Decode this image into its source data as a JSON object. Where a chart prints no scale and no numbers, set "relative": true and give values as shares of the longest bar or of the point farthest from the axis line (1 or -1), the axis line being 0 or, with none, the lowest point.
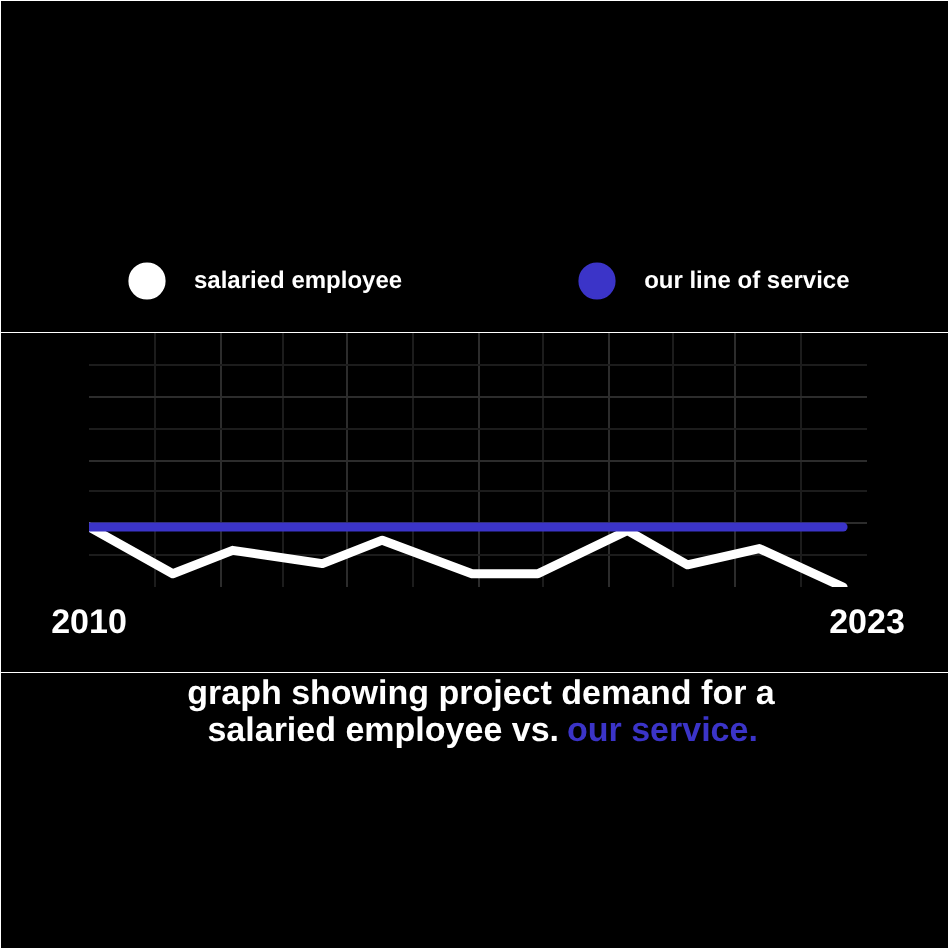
{
  "chart_data": {
    "type": "line",
    "title": "graph showing project demand for a salaried employee vs. our service.",
    "relative": true,
    "xlim": [
      2010,
      2023
    ],
    "xticks": [
      2010,
      {
        "value": 2012.2,
        "label": null
      },
      {
        "value": 2014.3,
        "label": null
      },
      {
        "value": 2016.5,
        "label": null
      },
      {
        "value": 2018.7,
        "label": null
      },
      {
        "value": 2020.8,
        "label": null
      },
      2023
    ],
    "series": [
      {
        "name": "salaried employee",
        "color": "#ffffff",
        "x": [
          2010,
          2011.4,
          2012.4,
          2013.9,
          2014.9,
          2016.4,
          2017.5,
          2019.0,
          2020.0,
          2021.2,
          2022.6
        ],
        "values": [
          1,
          0.22,
          0.61,
          0.39,
          0.78,
          0.22,
          0.22,
          0.94,
          0.37,
          0.64,
          0
        ]
      },
      {
        "name": "our line of service",
        "color": "#3b34c8",
        "x": [
          2010,
          2022.6
        ],
        "values": [
          1,
          1
        ]
      }
    ],
    "legend": "top",
    "grid": true,
    "line_style": "solid"
  }
}
